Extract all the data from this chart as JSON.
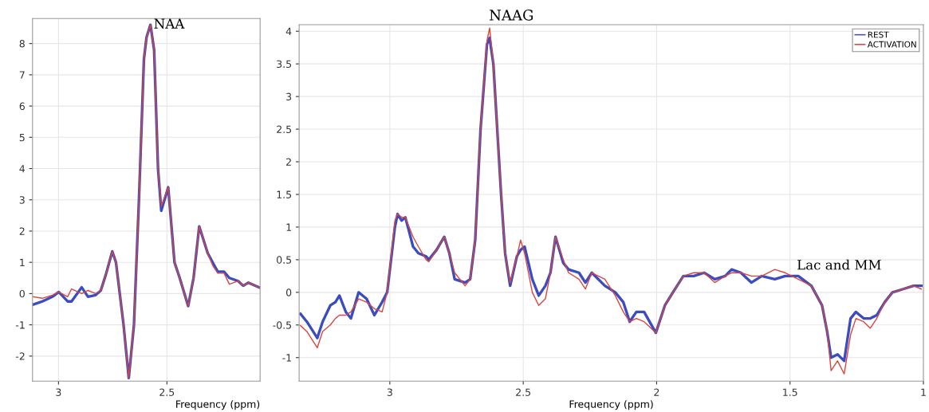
{
  "chart_data": [
    {
      "type": "line",
      "xlabel": "Frequency (ppm)",
      "xlim": [
        3.12,
        2.07
      ],
      "xticks": [
        3,
        2.5
      ],
      "ylim": [
        -2.8,
        8.8
      ],
      "yticks": [
        -2,
        -1,
        0,
        1,
        2,
        3,
        4,
        5,
        6,
        7,
        8
      ],
      "grid": true,
      "legend": false,
      "annotations": [
        "NAA"
      ],
      "series": [
        {
          "color": "#3b4cc0",
          "x": [
            3.116,
            3.075,
            3.028,
            2.999,
            2.958,
            2.94,
            2.893,
            2.864,
            2.829,
            2.805,
            2.782,
            2.752,
            2.735,
            2.7,
            2.676,
            2.652,
            2.629,
            2.606,
            2.594,
            2.576,
            2.559,
            2.541,
            2.526,
            2.494,
            2.465,
            2.441,
            2.402,
            2.377,
            2.351,
            2.312,
            2.289,
            2.265,
            2.236,
            2.212,
            2.171,
            2.148,
            2.124,
            2.075
          ],
          "values": [
            -0.35,
            -0.25,
            -0.1,
            0.05,
            -0.25,
            -0.25,
            0.2,
            -0.1,
            -0.05,
            0.1,
            0.6,
            1.35,
            1.0,
            -1.0,
            -2.7,
            -1.0,
            3.0,
            7.5,
            8.2,
            8.6,
            7.8,
            4.0,
            2.65,
            3.4,
            1.0,
            0.5,
            -0.4,
            0.5,
            2.15,
            1.3,
            1.0,
            0.7,
            0.7,
            0.5,
            0.4,
            0.25,
            0.35,
            0.2
          ]
        },
        {
          "color": "#d9453f",
          "x": [
            3.116,
            3.075,
            3.028,
            2.999,
            2.958,
            2.94,
            2.893,
            2.864,
            2.829,
            2.805,
            2.782,
            2.752,
            2.735,
            2.7,
            2.676,
            2.652,
            2.629,
            2.606,
            2.594,
            2.576,
            2.559,
            2.541,
            2.526,
            2.494,
            2.465,
            2.441,
            2.402,
            2.377,
            2.351,
            2.312,
            2.289,
            2.265,
            2.236,
            2.212,
            2.171,
            2.148,
            2.124,
            2.075
          ],
          "values": [
            -0.1,
            -0.15,
            -0.05,
            0.05,
            -0.1,
            0.15,
            0.0,
            0.1,
            0.0,
            0.1,
            0.6,
            1.35,
            1.0,
            -1.0,
            -2.7,
            -1.0,
            3.0,
            7.5,
            8.2,
            8.6,
            7.8,
            4.0,
            2.8,
            3.4,
            1.0,
            0.5,
            -0.4,
            0.5,
            2.15,
            1.3,
            0.9,
            0.65,
            0.65,
            0.3,
            0.4,
            0.25,
            0.35,
            0.2
          ]
        }
      ]
    },
    {
      "type": "line",
      "title": "NAAG",
      "xlabel": "Frequency (ppm)",
      "xlim": [
        3.34,
        1.0
      ],
      "xticks": [
        3,
        2.5,
        2,
        1.5,
        1
      ],
      "ylim": [
        -1.36,
        4.1
      ],
      "yticks": [
        -1,
        -0.5,
        0,
        0.5,
        1,
        1.5,
        2,
        2.5,
        3,
        3.5,
        4
      ],
      "grid": true,
      "legend": "top right",
      "annotations": [
        "Lac and MM"
      ],
      "series": [
        {
          "name": "REST",
          "color": "#3b4cc0",
          "x": [
            3.335,
            3.311,
            3.272,
            3.252,
            3.223,
            3.204,
            3.189,
            3.165,
            3.146,
            3.117,
            3.087,
            3.058,
            3.029,
            3.01,
            2.981,
            2.971,
            2.956,
            2.942,
            2.913,
            2.893,
            2.864,
            2.854,
            2.825,
            2.796,
            2.777,
            2.757,
            2.718,
            2.699,
            2.68,
            2.66,
            2.636,
            2.626,
            2.612,
            2.583,
            2.568,
            2.549,
            2.524,
            2.51,
            2.495,
            2.466,
            2.442,
            2.417,
            2.398,
            2.379,
            2.35,
            2.33,
            2.291,
            2.267,
            2.243,
            2.194,
            2.155,
            2.125,
            2.101,
            2.076,
            2.047,
            2.003,
            1.969,
            1.939,
            1.9,
            1.861,
            1.822,
            1.782,
            1.743,
            1.719,
            1.684,
            1.645,
            1.606,
            1.557,
            1.518,
            1.469,
            1.42,
            1.38,
            1.361,
            1.346,
            1.322,
            1.297,
            1.273,
            1.253,
            1.224,
            1.199,
            1.175,
            1.145,
            1.116,
            1.076,
            1.037,
            1.008
          ],
          "values": [
            -0.33,
            -0.45,
            -0.7,
            -0.45,
            -0.2,
            -0.15,
            -0.05,
            -0.3,
            -0.4,
            0.0,
            -0.1,
            -0.35,
            -0.15,
            0.0,
            1.0,
            1.2,
            1.1,
            1.15,
            0.7,
            0.6,
            0.55,
            0.5,
            0.65,
            0.85,
            0.6,
            0.2,
            0.15,
            0.2,
            0.8,
            2.5,
            3.8,
            3.9,
            3.5,
            1.5,
            0.6,
            0.1,
            0.55,
            0.65,
            0.7,
            0.2,
            -0.05,
            0.1,
            0.3,
            0.85,
            0.45,
            0.35,
            0.3,
            0.15,
            0.3,
            0.1,
            0.0,
            -0.15,
            -0.45,
            -0.3,
            -0.3,
            -0.62,
            -0.2,
            0.0,
            0.25,
            0.25,
            0.3,
            0.2,
            0.25,
            0.35,
            0.3,
            0.15,
            0.25,
            0.2,
            0.25,
            0.25,
            0.1,
            -0.2,
            -0.6,
            -1.0,
            -0.95,
            -1.05,
            -0.4,
            -0.3,
            -0.4,
            -0.4,
            -0.35,
            -0.15,
            0.0,
            0.05,
            0.1,
            0.1
          ]
        },
        {
          "name": "ACTIVATION",
          "color": "#d9453f",
          "x": [
            3.335,
            3.311,
            3.272,
            3.252,
            3.223,
            3.204,
            3.189,
            3.165,
            3.146,
            3.117,
            3.087,
            3.058,
            3.029,
            3.01,
            2.981,
            2.971,
            2.956,
            2.942,
            2.913,
            2.893,
            2.864,
            2.854,
            2.825,
            2.796,
            2.777,
            2.757,
            2.718,
            2.699,
            2.68,
            2.66,
            2.636,
            2.626,
            2.612,
            2.583,
            2.568,
            2.549,
            2.524,
            2.51,
            2.495,
            2.466,
            2.442,
            2.417,
            2.398,
            2.379,
            2.35,
            2.33,
            2.291,
            2.267,
            2.243,
            2.194,
            2.155,
            2.125,
            2.101,
            2.076,
            2.047,
            2.003,
            1.969,
            1.939,
            1.9,
            1.861,
            1.822,
            1.782,
            1.743,
            1.719,
            1.684,
            1.645,
            1.606,
            1.557,
            1.518,
            1.469,
            1.42,
            1.38,
            1.361,
            1.346,
            1.322,
            1.297,
            1.273,
            1.253,
            1.224,
            1.199,
            1.175,
            1.145,
            1.116,
            1.076,
            1.037,
            1.008
          ],
          "values": [
            -0.51,
            -0.6,
            -0.85,
            -0.6,
            -0.5,
            -0.4,
            -0.35,
            -0.35,
            -0.3,
            -0.1,
            -0.15,
            -0.25,
            -0.3,
            0.0,
            1.1,
            1.2,
            1.15,
            1.15,
            0.85,
            0.7,
            0.5,
            0.47,
            0.65,
            0.85,
            0.6,
            0.3,
            0.1,
            0.2,
            0.8,
            2.5,
            3.85,
            4.05,
            3.5,
            1.5,
            0.6,
            0.15,
            0.55,
            0.8,
            0.6,
            0.0,
            -0.2,
            -0.1,
            0.3,
            0.85,
            0.5,
            0.3,
            0.2,
            0.05,
            0.3,
            0.2,
            -0.05,
            -0.3,
            -0.45,
            -0.4,
            -0.45,
            -0.62,
            -0.2,
            0.0,
            0.25,
            0.3,
            0.3,
            0.15,
            0.25,
            0.3,
            0.3,
            0.25,
            0.25,
            0.35,
            0.3,
            0.2,
            0.1,
            -0.2,
            -0.6,
            -1.2,
            -1.05,
            -1.25,
            -0.65,
            -0.4,
            -0.45,
            -0.55,
            -0.4,
            -0.15,
            0.0,
            0.05,
            0.1,
            0.05
          ]
        }
      ]
    }
  ]
}
